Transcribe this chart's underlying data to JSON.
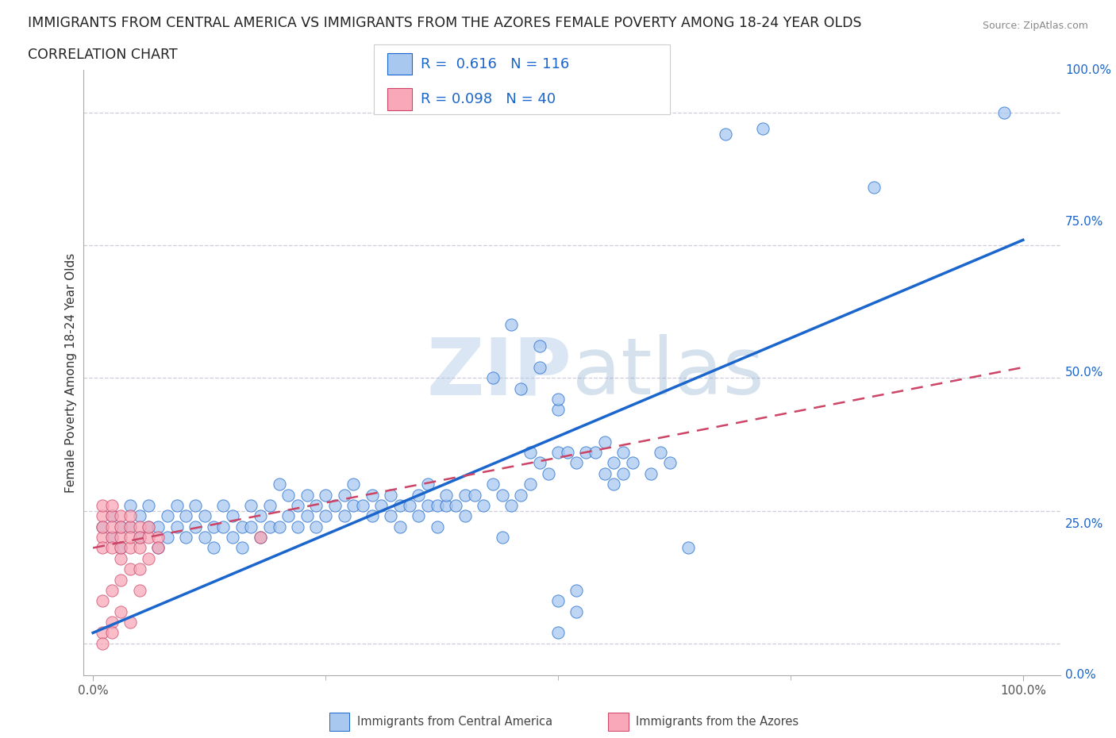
{
  "title_line1": "IMMIGRANTS FROM CENTRAL AMERICA VS IMMIGRANTS FROM THE AZORES FEMALE POVERTY AMONG 18-24 YEAR OLDS",
  "title_line2": "CORRELATION CHART",
  "source": "Source: ZipAtlas.com",
  "ylabel": "Female Poverty Among 18-24 Year Olds",
  "xlim": [
    -0.01,
    1.04
  ],
  "ylim": [
    -0.06,
    1.08
  ],
  "xtick_positions": [
    0.0,
    1.0
  ],
  "xtick_labels": [
    "0.0%",
    "100.0%"
  ],
  "ytick_labels": [
    "0.0%",
    "25.0%",
    "50.0%",
    "75.0%",
    "100.0%"
  ],
  "ytick_positions": [
    0.0,
    0.25,
    0.5,
    0.75,
    1.0
  ],
  "watermark": "ZIPatlas",
  "R_blue": 0.616,
  "N_blue": 116,
  "R_pink": 0.098,
  "N_pink": 40,
  "scatter_blue": [
    [
      0.01,
      0.22
    ],
    [
      0.02,
      0.2
    ],
    [
      0.02,
      0.24
    ],
    [
      0.03,
      0.22
    ],
    [
      0.03,
      0.18
    ],
    [
      0.04,
      0.22
    ],
    [
      0.04,
      0.26
    ],
    [
      0.05,
      0.2
    ],
    [
      0.05,
      0.24
    ],
    [
      0.06,
      0.22
    ],
    [
      0.06,
      0.26
    ],
    [
      0.07,
      0.22
    ],
    [
      0.07,
      0.18
    ],
    [
      0.08,
      0.24
    ],
    [
      0.08,
      0.2
    ],
    [
      0.09,
      0.22
    ],
    [
      0.09,
      0.26
    ],
    [
      0.1,
      0.2
    ],
    [
      0.1,
      0.24
    ],
    [
      0.11,
      0.22
    ],
    [
      0.11,
      0.26
    ],
    [
      0.12,
      0.2
    ],
    [
      0.12,
      0.24
    ],
    [
      0.13,
      0.22
    ],
    [
      0.13,
      0.18
    ],
    [
      0.14,
      0.22
    ],
    [
      0.14,
      0.26
    ],
    [
      0.15,
      0.2
    ],
    [
      0.15,
      0.24
    ],
    [
      0.16,
      0.22
    ],
    [
      0.16,
      0.18
    ],
    [
      0.17,
      0.22
    ],
    [
      0.17,
      0.26
    ],
    [
      0.18,
      0.2
    ],
    [
      0.18,
      0.24
    ],
    [
      0.19,
      0.22
    ],
    [
      0.19,
      0.26
    ],
    [
      0.2,
      0.22
    ],
    [
      0.2,
      0.3
    ],
    [
      0.21,
      0.24
    ],
    [
      0.21,
      0.28
    ],
    [
      0.22,
      0.22
    ],
    [
      0.22,
      0.26
    ],
    [
      0.23,
      0.24
    ],
    [
      0.23,
      0.28
    ],
    [
      0.24,
      0.26
    ],
    [
      0.24,
      0.22
    ],
    [
      0.25,
      0.28
    ],
    [
      0.25,
      0.24
    ],
    [
      0.26,
      0.26
    ],
    [
      0.27,
      0.28
    ],
    [
      0.27,
      0.24
    ],
    [
      0.28,
      0.26
    ],
    [
      0.28,
      0.3
    ],
    [
      0.29,
      0.26
    ],
    [
      0.3,
      0.28
    ],
    [
      0.3,
      0.24
    ],
    [
      0.31,
      0.26
    ],
    [
      0.32,
      0.28
    ],
    [
      0.32,
      0.24
    ],
    [
      0.33,
      0.26
    ],
    [
      0.33,
      0.22
    ],
    [
      0.34,
      0.26
    ],
    [
      0.35,
      0.28
    ],
    [
      0.35,
      0.24
    ],
    [
      0.36,
      0.26
    ],
    [
      0.36,
      0.3
    ],
    [
      0.37,
      0.26
    ],
    [
      0.37,
      0.22
    ],
    [
      0.38,
      0.26
    ],
    [
      0.38,
      0.28
    ],
    [
      0.39,
      0.26
    ],
    [
      0.4,
      0.28
    ],
    [
      0.4,
      0.24
    ],
    [
      0.41,
      0.28
    ],
    [
      0.42,
      0.26
    ],
    [
      0.43,
      0.3
    ],
    [
      0.44,
      0.28
    ],
    [
      0.44,
      0.2
    ],
    [
      0.45,
      0.26
    ],
    [
      0.46,
      0.28
    ],
    [
      0.47,
      0.3
    ],
    [
      0.47,
      0.36
    ],
    [
      0.48,
      0.34
    ],
    [
      0.49,
      0.32
    ],
    [
      0.5,
      0.36
    ],
    [
      0.5,
      0.44
    ],
    [
      0.51,
      0.36
    ],
    [
      0.52,
      0.34
    ],
    [
      0.53,
      0.36
    ],
    [
      0.54,
      0.36
    ],
    [
      0.55,
      0.38
    ],
    [
      0.55,
      0.32
    ],
    [
      0.56,
      0.3
    ],
    [
      0.56,
      0.34
    ],
    [
      0.57,
      0.36
    ],
    [
      0.57,
      0.32
    ],
    [
      0.58,
      0.34
    ],
    [
      0.6,
      0.32
    ],
    [
      0.61,
      0.36
    ],
    [
      0.62,
      0.34
    ],
    [
      0.64,
      0.18
    ],
    [
      0.48,
      0.52
    ],
    [
      0.5,
      0.46
    ],
    [
      0.43,
      0.5
    ],
    [
      0.46,
      0.48
    ],
    [
      0.5,
      0.08
    ],
    [
      0.52,
      0.1
    ],
    [
      0.68,
      0.96
    ],
    [
      0.72,
      0.97
    ],
    [
      0.84,
      0.86
    ],
    [
      0.98,
      1.0
    ],
    [
      0.45,
      0.6
    ],
    [
      0.48,
      0.56
    ],
    [
      0.5,
      0.02
    ],
    [
      0.52,
      0.06
    ]
  ],
  "scatter_pink": [
    [
      0.01,
      0.24
    ],
    [
      0.01,
      0.2
    ],
    [
      0.01,
      0.18
    ],
    [
      0.01,
      0.26
    ],
    [
      0.01,
      0.22
    ],
    [
      0.02,
      0.24
    ],
    [
      0.02,
      0.2
    ],
    [
      0.02,
      0.18
    ],
    [
      0.02,
      0.26
    ],
    [
      0.02,
      0.22
    ],
    [
      0.03,
      0.24
    ],
    [
      0.03,
      0.2
    ],
    [
      0.03,
      0.16
    ],
    [
      0.03,
      0.22
    ],
    [
      0.03,
      0.18
    ],
    [
      0.04,
      0.22
    ],
    [
      0.04,
      0.18
    ],
    [
      0.04,
      0.24
    ],
    [
      0.04,
      0.14
    ],
    [
      0.04,
      0.2
    ],
    [
      0.05,
      0.22
    ],
    [
      0.05,
      0.18
    ],
    [
      0.05,
      0.14
    ],
    [
      0.05,
      0.2
    ],
    [
      0.05,
      0.1
    ],
    [
      0.06,
      0.2
    ],
    [
      0.06,
      0.16
    ],
    [
      0.06,
      0.22
    ],
    [
      0.07,
      0.2
    ],
    [
      0.07,
      0.18
    ],
    [
      0.01,
      0.08
    ],
    [
      0.02,
      0.1
    ],
    [
      0.03,
      0.06
    ],
    [
      0.04,
      0.04
    ],
    [
      0.02,
      0.04
    ],
    [
      0.01,
      0.02
    ],
    [
      0.01,
      0.0
    ],
    [
      0.02,
      0.02
    ],
    [
      0.18,
      0.2
    ],
    [
      0.03,
      0.12
    ]
  ],
  "blue_line_x": [
    0.0,
    1.0
  ],
  "blue_line_y": [
    0.02,
    0.76
  ],
  "pink_line_x": [
    0.0,
    1.0
  ],
  "pink_line_y": [
    0.18,
    0.52
  ],
  "scatter_blue_color": "#a8c8f0",
  "scatter_pink_color": "#f8a8b8",
  "line_blue_color": "#1a66cc",
  "line_pink_color": "#cc4466",
  "grid_color": "#c8c8d8",
  "background_color": "#ffffff",
  "label_blue": "Immigrants from Central America",
  "label_pink": "Immigrants from the Azores",
  "title_fontsize": 12.5,
  "subtitle_fontsize": 12.5,
  "axis_label_fontsize": 11,
  "tick_fontsize": 11,
  "legend_fontsize": 13
}
